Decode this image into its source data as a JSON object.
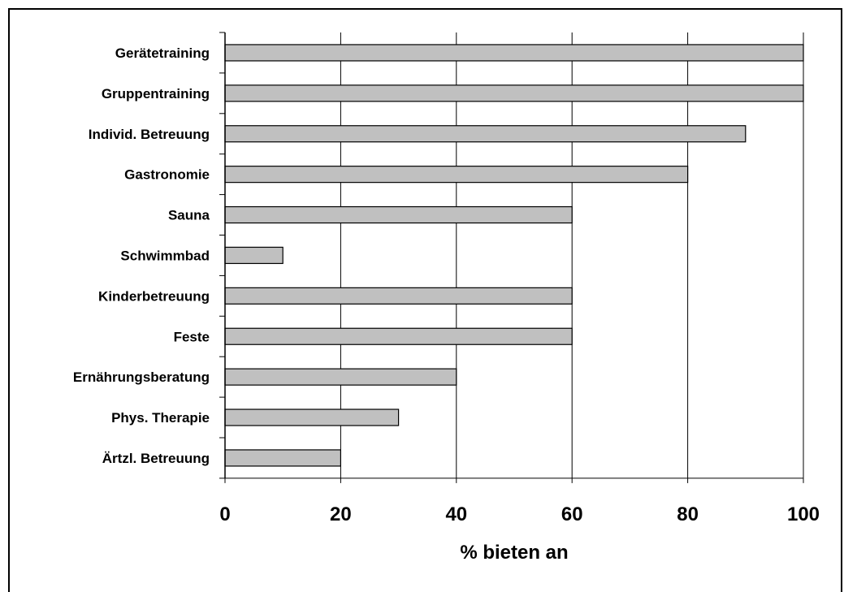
{
  "chart_data": {
    "type": "bar",
    "orientation": "horizontal",
    "categories": [
      "Gerätetraining",
      "Gruppentraining",
      "Individ. Betreuung",
      "Gastronomie",
      "Sauna",
      "Schwimmbad",
      "Kinderbetreuung",
      "Feste",
      "Ernährungsberatung",
      "Phys. Therapie",
      "Ärtzl. Betreuung"
    ],
    "values": [
      100,
      100,
      90,
      80,
      60,
      10,
      60,
      60,
      40,
      30,
      20
    ],
    "xlabel": "% bieten an",
    "ylabel": "",
    "xlim": [
      0,
      100
    ],
    "xticks": [
      "0",
      "20",
      "40",
      "60",
      "80",
      "100"
    ],
    "grid": "vertical",
    "legend": "none",
    "colors": {
      "bar_fill": "#c0c0c0",
      "bar_stroke": "#000000",
      "gridline": "#000000"
    }
  }
}
